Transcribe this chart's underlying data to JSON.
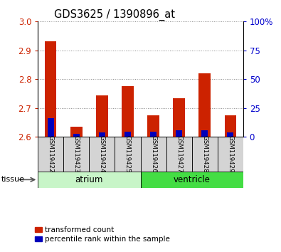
{
  "title": "GDS3625 / 1390896_at",
  "samples": [
    "GSM119422",
    "GSM119423",
    "GSM119424",
    "GSM119425",
    "GSM119426",
    "GSM119427",
    "GSM119428",
    "GSM119429"
  ],
  "transformed_count": [
    2.93,
    2.635,
    2.745,
    2.775,
    2.675,
    2.735,
    2.82,
    2.675
  ],
  "percentile_rank_left": [
    0.065,
    0.01,
    0.015,
    0.018,
    0.018,
    0.022,
    0.022,
    0.015
  ],
  "bar_base": 2.6,
  "ylim": [
    2.6,
    3.0
  ],
  "y2lim": [
    0,
    100
  ],
  "yticks": [
    2.6,
    2.7,
    2.8,
    2.9,
    3.0
  ],
  "y2ticks": [
    0,
    25,
    50,
    75,
    100
  ],
  "y2ticklabels": [
    "0",
    "25",
    "50",
    "75",
    "100%"
  ],
  "atrium_color_light": "#ccf5cc",
  "atrium_color_dark": "#44dd44",
  "ventricle_color": "#22cc22",
  "red_color": "#cc2200",
  "blue_color": "#0000bb",
  "sample_box_color": "#d4d4d4",
  "grid_linestyle": ":",
  "ylabel_color": "#cc2200",
  "y2label_color": "#0000cc",
  "tissue_label": "tissue",
  "legend_transformed": "transformed count",
  "legend_percentile": "percentile rank within the sample",
  "bar_width": 0.45,
  "blue_bar_width": 0.25,
  "tissue_groups": [
    {
      "label": "atrium",
      "start": 0,
      "end": 4
    },
    {
      "label": "ventricle",
      "start": 4,
      "end": 8
    }
  ]
}
